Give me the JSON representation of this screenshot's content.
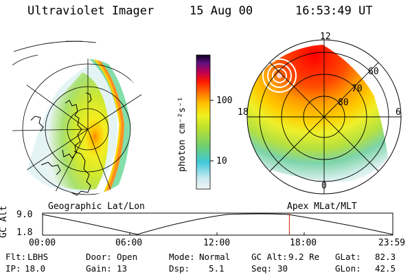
{
  "header": {
    "instrument": "Ultraviolet Imager",
    "date": "15 Aug 00",
    "time": "16:53:49 UT"
  },
  "colorbar": {
    "unit_label": "photon cm⁻²s⁻¹",
    "ticks": [
      "100",
      "10"
    ]
  },
  "left_panel": {
    "caption": "Geographic Lat/Lon"
  },
  "right_panel": {
    "caption": "Apex MLat/MLT",
    "mlt_labels": {
      "top": "12",
      "left": "18",
      "right": "6",
      "bottom": "0"
    },
    "lat_labels": [
      "60",
      "70",
      "80"
    ]
  },
  "altitude_plot": {
    "axis_label": "GC Alt",
    "y_ticks": [
      "9.0",
      "1.8"
    ],
    "x_ticks": [
      "00:00",
      "06:00",
      "12:00",
      "18:00",
      "23:59"
    ],
    "marker_time_hours": 16.9
  },
  "info": {
    "flt_label": "Flt:",
    "flt_value": "LBHS",
    "ip_label": "IP:",
    "ip_value": "18.0",
    "door_label": "Door:",
    "door_value": "Open",
    "gain_label": "Gain:",
    "gain_value": "13",
    "mode_label": "Mode:",
    "mode_value": "Normal",
    "dsp_label": "Dsp:",
    "dsp_value": "5.1",
    "gcalt_label": "GC Alt:",
    "gcalt_value": "9.2 Re",
    "seq_label": "Seq:",
    "seq_value": "30",
    "glat_label": "GLat:",
    "glat_value": "82.3",
    "glon_label": "GLon:",
    "glon_value": "42.5"
  }
}
